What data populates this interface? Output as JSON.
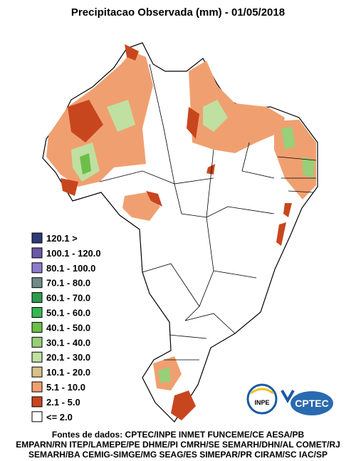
{
  "title": "Precipitacao Observada (mm) - 01/05/2018",
  "legend": [
    {
      "label": "120.1 >",
      "color": "#2b3a78"
    },
    {
      "label": "100.1 - 120.0",
      "color": "#6a58a8"
    },
    {
      "label": "80.1 - 100.0",
      "color": "#8c7ccc"
    },
    {
      "label": "70.1 - 80.0",
      "color": "#6f8c88"
    },
    {
      "label": "60.1 - 70.0",
      "color": "#2e9a4c"
    },
    {
      "label": "50.1 - 60.0",
      "color": "#34b854"
    },
    {
      "label": "40.1 - 50.0",
      "color": "#6cbf48"
    },
    {
      "label": "30.1 - 40.0",
      "color": "#98cf78"
    },
    {
      "label": "20.1 - 30.0",
      "color": "#bfe0a0"
    },
    {
      "label": "10.1 - 20.0",
      "color": "#d8c08a"
    },
    {
      "label": "5.1 - 10.0",
      "color": "#f0a070"
    },
    {
      "label": "2.1 - 5.0",
      "color": "#c8461e"
    },
    {
      "label": "<= 2.0",
      "color": "#ffffff"
    }
  ],
  "logos": {
    "inpe": "INPE",
    "cptec": "CPTEC"
  },
  "sources": [
    "Fontes de dados: CPTEC/INPE INMET FUNCEME/CE AESA/PB",
    "EMPARN/RN ITEP/LAMEPE/PE DHME/PI CMRH/SE SEMARH/DHN/AL COMET/RJ",
    "SEMARH/BA CEMIG-SIMGE/MG SEAG/ES SIMEPAR/PR CIRAM/SC IAC/SP"
  ]
}
